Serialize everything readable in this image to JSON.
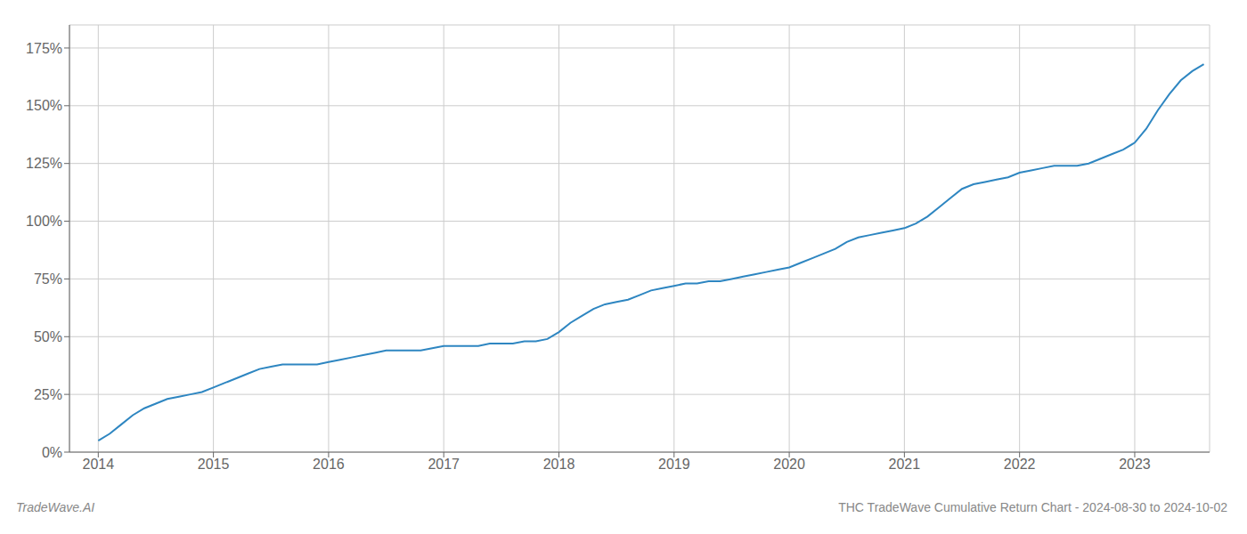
{
  "chart_data": {
    "type": "line",
    "title": "THC TradeWave Cumulative Return Chart - 2024-08-30 to 2024-10-02",
    "annotations": [
      "TradeWave.AI"
    ],
    "color": "#2e86c1",
    "grid": true,
    "x": [
      2014.0,
      2014.1,
      2014.2,
      2014.3,
      2014.4,
      2014.5,
      2014.6,
      2014.7,
      2014.8,
      2014.9,
      2015.0,
      2015.1,
      2015.2,
      2015.3,
      2015.4,
      2015.5,
      2015.6,
      2015.7,
      2015.8,
      2015.9,
      2016.0,
      2016.1,
      2016.2,
      2016.3,
      2016.4,
      2016.5,
      2016.6,
      2016.7,
      2016.8,
      2016.9,
      2017.0,
      2017.1,
      2017.2,
      2017.3,
      2017.4,
      2017.5,
      2017.6,
      2017.7,
      2017.8,
      2017.9,
      2018.0,
      2018.1,
      2018.2,
      2018.3,
      2018.4,
      2018.5,
      2018.6,
      2018.7,
      2018.8,
      2018.9,
      2019.0,
      2019.1,
      2019.2,
      2019.3,
      2019.4,
      2019.5,
      2019.6,
      2019.7,
      2019.8,
      2019.9,
      2020.0,
      2020.1,
      2020.2,
      2020.3,
      2020.4,
      2020.5,
      2020.6,
      2020.7,
      2020.8,
      2020.9,
      2021.0,
      2021.1,
      2021.2,
      2021.3,
      2021.4,
      2021.5,
      2021.6,
      2021.7,
      2021.8,
      2021.9,
      2022.0,
      2022.1,
      2022.2,
      2022.3,
      2022.4,
      2022.5,
      2022.6,
      2022.7,
      2022.8,
      2022.9,
      2023.0,
      2023.1,
      2023.2,
      2023.3,
      2023.4,
      2023.5,
      2023.6
    ],
    "values": [
      5,
      8,
      12,
      16,
      19,
      21,
      23,
      24,
      25,
      26,
      28,
      30,
      32,
      34,
      36,
      37,
      38,
      38,
      38,
      38,
      39,
      40,
      41,
      42,
      43,
      44,
      44,
      44,
      44,
      45,
      46,
      46,
      46,
      46,
      47,
      47,
      47,
      48,
      48,
      49,
      52,
      56,
      59,
      62,
      64,
      65,
      66,
      68,
      70,
      71,
      72,
      73,
      73,
      74,
      74,
      75,
      76,
      77,
      78,
      79,
      80,
      82,
      84,
      86,
      88,
      91,
      93,
      94,
      95,
      96,
      97,
      99,
      102,
      106,
      110,
      114,
      116,
      117,
      118,
      119,
      121,
      122,
      123,
      124,
      124,
      124,
      125,
      127,
      129,
      131,
      134,
      140,
      148,
      155,
      161,
      165,
      168
    ],
    "xlim": [
      2013.75,
      2023.65
    ],
    "ylim": [
      0,
      185
    ],
    "xticks": [
      2014,
      2015,
      2016,
      2017,
      2018,
      2019,
      2020,
      2021,
      2022,
      2023
    ],
    "yticks": [
      {
        "value": 0,
        "label": "0%"
      },
      {
        "value": 25,
        "label": "25%"
      },
      {
        "value": 50,
        "label": "50%"
      },
      {
        "value": 75,
        "label": "75%"
      },
      {
        "value": 100,
        "label": "100%"
      },
      {
        "value": 125,
        "label": "125%"
      },
      {
        "value": 150,
        "label": "150%"
      },
      {
        "value": 175,
        "label": "175%"
      }
    ]
  }
}
